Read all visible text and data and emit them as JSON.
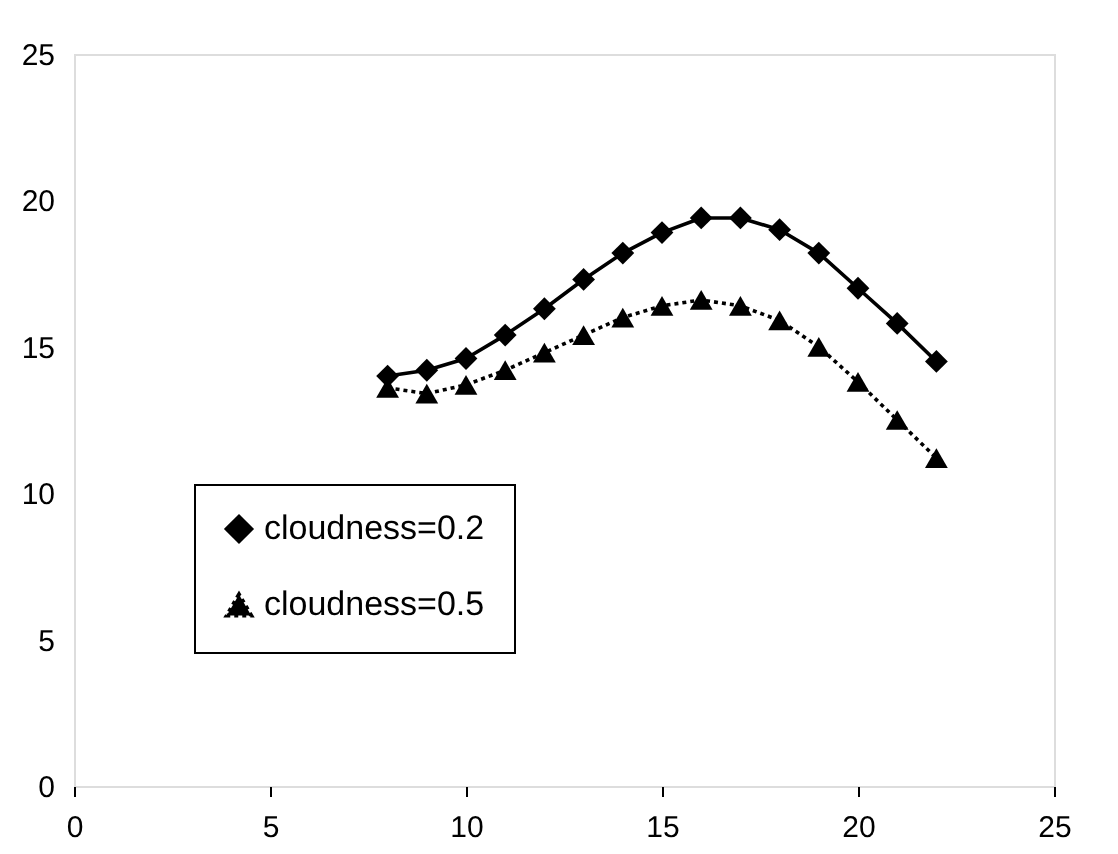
{
  "chart_data": {
    "type": "line",
    "x": [
      8,
      9,
      10,
      11,
      12,
      13,
      14,
      15,
      16,
      17,
      18,
      19,
      20,
      21,
      22
    ],
    "series": [
      {
        "name": "cloudness=0.2",
        "color": "#000000",
        "marker": "diamond",
        "line_style": "solid",
        "values": [
          14.0,
          14.2,
          14.6,
          15.4,
          16.3,
          17.3,
          18.2,
          18.9,
          19.4,
          19.4,
          19.0,
          18.2,
          17.0,
          15.8,
          14.5
        ]
      },
      {
        "name": "cloudness=0.5",
        "color": "#000000",
        "marker": "triangle",
        "line_style": "dotted",
        "values": [
          13.6,
          13.4,
          13.7,
          14.2,
          14.8,
          15.4,
          16.0,
          16.4,
          16.6,
          16.4,
          15.9,
          15.0,
          13.8,
          12.5,
          11.2
        ]
      }
    ],
    "xlim": [
      0,
      25
    ],
    "xticks": [
      0,
      5,
      10,
      15,
      20,
      25
    ],
    "ylim": [
      0,
      25
    ],
    "yticks": [
      0,
      5,
      10,
      15,
      20,
      25
    ],
    "grid": false,
    "legend": "bottom left"
  }
}
